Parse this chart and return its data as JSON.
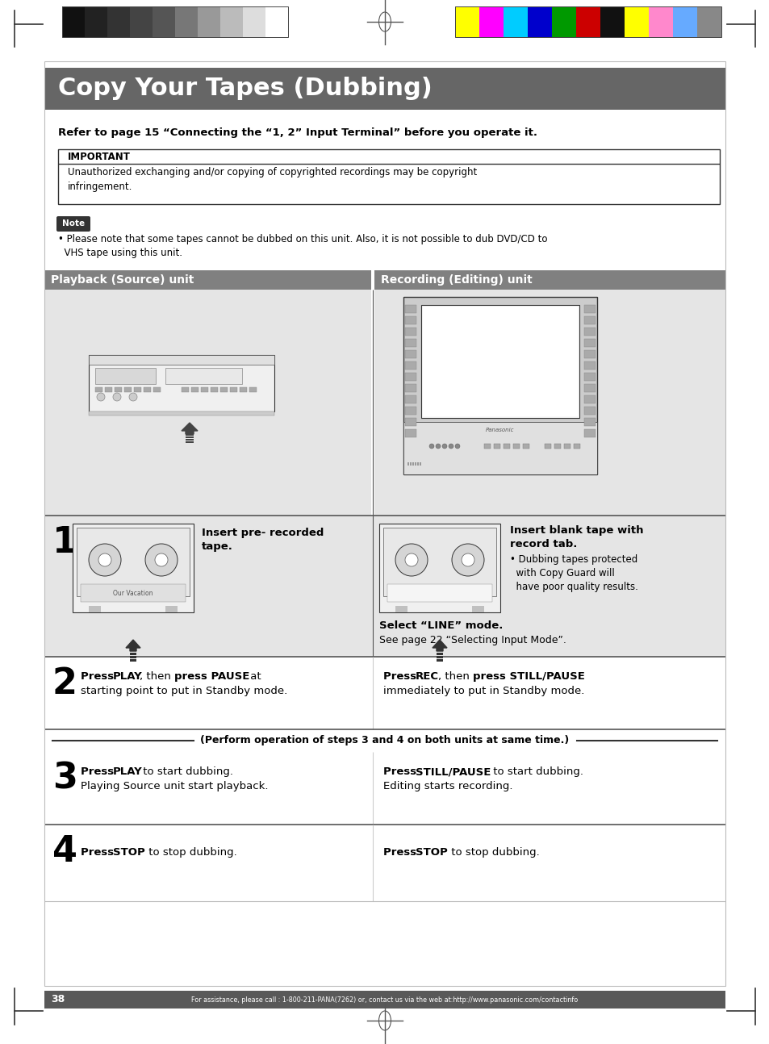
{
  "title": "Copy Your Tapes (Dubbing)",
  "title_bg": "#666666",
  "title_color": "#ffffff",
  "refer_text": "Refer to page 15 “Connecting the “1, 2” Input Terminal” before you operate it.",
  "important_label": "IMPORTANT",
  "important_body": "Unauthorized exchanging and/or copying of copyrighted recordings may be copyright\ninfringement.",
  "note_label": "Note",
  "note_text": "• Please note that some tapes cannot be dubbed on this unit. Also, it is not possible to dub DVD/CD to\n  VHS tape using this unit.",
  "section_left": "Playback (Source) unit",
  "section_right": "Recording (Editing) unit",
  "section_left_bg": "#808080",
  "section_right_bg": "#808080",
  "step1_left_insert": "Insert pre- recorded\ntape.",
  "step1_right_bold": "Insert blank tape with\nrecord tab.",
  "step1_right_sub": "• Dubbing tapes protected\n  with Copy Guard will\n  have poor quality results.",
  "step1_select_bold": "Select “LINE” mode.",
  "step1_select_normal": "See page 22 “Selecting Input Mode”.",
  "step2_left_bold": "Press PLAY",
  "step2_left_bold2": "press PAUSE",
  "step2_left_normal1": ", then ",
  "step2_left_normal2": " at\nstarting point to put in Standby mode.",
  "step2_right_bold": "Press REC",
  "step2_right_bold2": "press STILL/PAUSE",
  "step2_right_normal1": ", then ",
  "step2_right_normal2": "\nimmediately to put in Standby mode.",
  "step3_note": "(Perform operation of steps 3 and 4 on both units at same time.)",
  "step3_left_bold": "Press PLAY",
  "step3_left_normal": " to start dubbing.\nPlaying Source unit start playback.",
  "step3_right_bold": "Press STILL/PAUSE",
  "step3_right_normal": " to start dubbing.\nEditing starts recording.",
  "step4_left_bold": "Press STOP",
  "step4_left_normal": " to stop dubbing.",
  "step4_right_bold": "Press STOP",
  "step4_right_normal": " to stop dubbing.",
  "page_num": "38",
  "footer_text": "For assistance, please call : 1-800-211-PANA(7262) or, contact us via the web at:http://www.panasonic.com/contactinfo",
  "bg_color": "#ffffff",
  "content_bg": "#e8e8e8",
  "gs_colors": [
    "#111111",
    "#222222",
    "#333333",
    "#444444",
    "#555555",
    "#777777",
    "#999999",
    "#bbbbbb",
    "#dddddd",
    "#ffffff"
  ],
  "color_bars": [
    "#ffff00",
    "#ff00ff",
    "#00ccff",
    "#0000cc",
    "#009900",
    "#cc0000",
    "#111111",
    "#ffff00",
    "#ff88cc",
    "#66aaff",
    "#888888"
  ]
}
